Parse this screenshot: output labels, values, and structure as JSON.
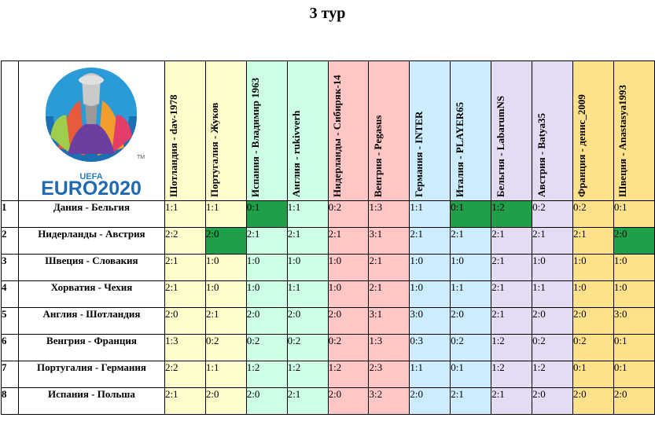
{
  "page": {
    "title": "3 тур"
  },
  "logo": {
    "uefa": "UEFA",
    "euro": "EURO2020",
    "tm": "TM"
  },
  "players": [
    "Шотландия - dav-1978",
    "Португалия - Жуков",
    "Испания - Владимир 1963",
    "Англия - rukivverh",
    "Нидерланды - Сибиряк-14",
    "Венгрия - Pegasus",
    "Германия - INTER",
    "Италия - PLAYER65",
    "Бельгия - LabarumNS",
    "Австрия - Batya35",
    "Франция - денис_2009",
    "Швеция - Anastasya1993"
  ],
  "rows": [
    {
      "num": "1",
      "match": "Дания - Бельгия",
      "scores": [
        "1:1",
        "1:1",
        "0:1",
        "1:1",
        "0:2",
        "1:3",
        "1:1",
        "0:1",
        "1:2",
        "0:2",
        "0:2",
        "0:1"
      ]
    },
    {
      "num": "2",
      "match": "Нидерланды - Австрия",
      "scores": [
        "2:2",
        "2:0",
        "2:1",
        "2:1",
        "2:1",
        "3:1",
        "2:1",
        "2:1",
        "2:1",
        "2:1",
        "2:1",
        "2:0"
      ]
    },
    {
      "num": "3",
      "match": "Швеция - Словакия",
      "scores": [
        "2:1",
        "1:0",
        "1:0",
        "1:0",
        "1:0",
        "2:1",
        "1:0",
        "1:0",
        "2:1",
        "1:0",
        "1:0",
        "1:0"
      ]
    },
    {
      "num": "4",
      "match": "Хорватия - Чехия",
      "scores": [
        "2:1",
        "1:0",
        "1:0",
        "1:1",
        "1:0",
        "2:1",
        "1:0",
        "1:1",
        "2:1",
        "1:1",
        "1:0",
        "1:0"
      ]
    },
    {
      "num": "5",
      "match": "Англия - Шотландия",
      "scores": [
        "2:0",
        "2:1",
        "2:0",
        "2:0",
        "2:0",
        "3:1",
        "3:0",
        "2:0",
        "2:1",
        "2:0",
        "2:0",
        "3:0"
      ]
    },
    {
      "num": "6",
      "match": "Венгрия - Франция",
      "scores": [
        "1:3",
        "0:2",
        "0:2",
        "0:2",
        "0:2",
        "1:3",
        "0:3",
        "0:2",
        "1:2",
        "0:2",
        "0:2",
        "0:1"
      ]
    },
    {
      "num": "7",
      "match": "Португалия - Германия",
      "scores": [
        "2:2",
        "1:1",
        "1:2",
        "1:2",
        "1:2",
        "2:3",
        "1:1",
        "0:1",
        "1:2",
        "1:2",
        "0:1",
        "0:1"
      ]
    },
    {
      "num": "8",
      "match": "Испания - Польша",
      "scores": [
        "2:1",
        "2:0",
        "2:0",
        "2:1",
        "2:0",
        "3:2",
        "2:0",
        "2:1",
        "2:1",
        "2:0",
        "2:0",
        "2:0"
      ]
    }
  ],
  "column_colors": [
    "c1",
    "c1",
    "c2",
    "c2",
    "c3",
    "c3",
    "c4",
    "c4",
    "c5",
    "c5",
    "c6",
    "c6"
  ],
  "highlighted_cells": [
    {
      "row": 0,
      "col": 2,
      "color": "#1e9f48"
    },
    {
      "row": 0,
      "col": 7,
      "color": "#1e9f48"
    },
    {
      "row": 0,
      "col": 8,
      "color": "#1e9f48"
    },
    {
      "row": 1,
      "col": 1,
      "color": "#1e9f48"
    },
    {
      "row": 1,
      "col": 11,
      "color": "#1e9f48"
    }
  ]
}
